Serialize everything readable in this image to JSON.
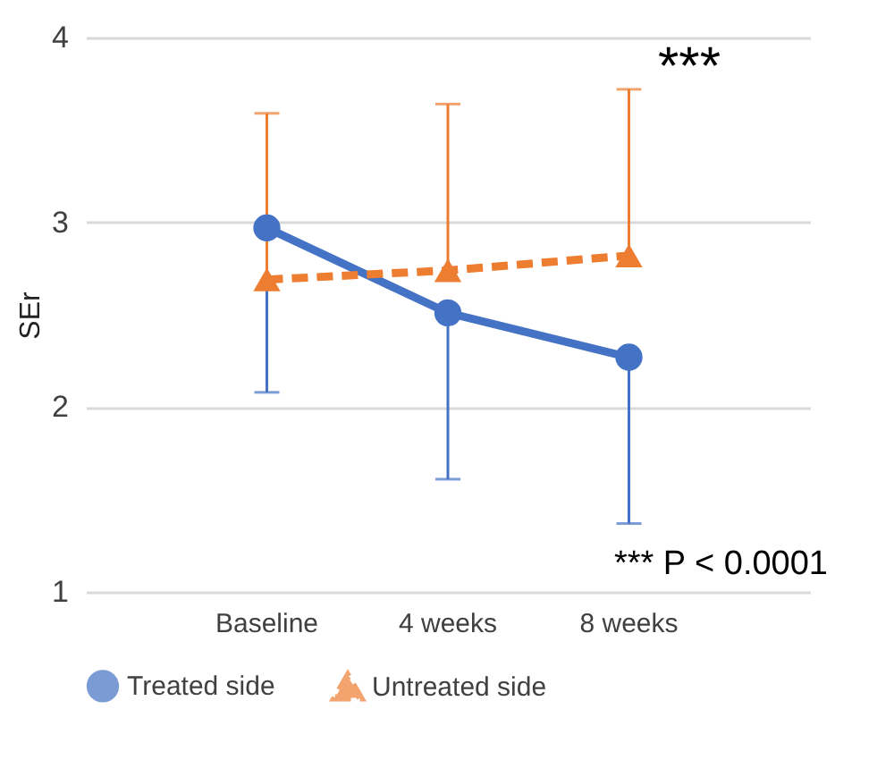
{
  "chart_data": {
    "type": "line",
    "ylabel": "SEr",
    "categories": [
      "Baseline",
      "4 weeks",
      "8 weeks"
    ],
    "series": [
      {
        "name": "Treated side",
        "color": "#4472c4",
        "values": [
          2.97,
          2.51,
          2.27
        ],
        "errors": [
          [
            2.08,
            2.97
          ],
          [
            1.61,
            2.51
          ],
          [
            1.37,
            2.27
          ]
        ],
        "marker": "circle",
        "line_style": "solid"
      },
      {
        "name": "Untreated side",
        "color": "#ed7d31",
        "values": [
          2.69,
          2.74,
          2.82
        ],
        "errors": [
          [
            2.69,
            3.59
          ],
          [
            2.74,
            3.64
          ],
          [
            2.82,
            3.72
          ]
        ],
        "marker": "triangle",
        "line_style": "dashed"
      }
    ],
    "ylim": [
      1,
      4
    ],
    "yticks": [
      {
        "value": 1,
        "label": "1"
      },
      {
        "value": 2,
        "label": "2"
      },
      {
        "value": 3,
        "label": "3"
      },
      {
        "value": 4,
        "label": "4"
      }
    ],
    "grid": "y",
    "legend": "bottom",
    "annotations": [
      "***",
      "*** P < 0.0001"
    ]
  }
}
